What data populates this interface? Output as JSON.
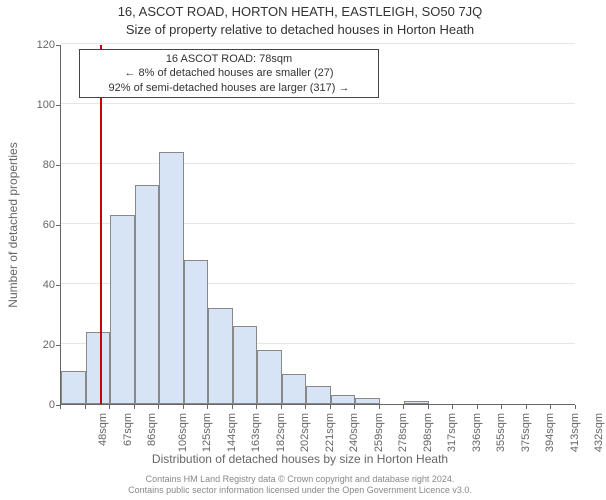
{
  "titles": {
    "main": "16, ASCOT ROAD, HORTON HEATH, EASTLEIGH, SO50 7JQ",
    "sub": "Size of property relative to detached houses in Horton Heath",
    "y_axis": "Number of detached properties",
    "x_axis": "Distribution of detached houses by size in Horton Heath"
  },
  "chart": {
    "type": "histogram",
    "ylim": [
      0,
      120
    ],
    "ytick_step": 20,
    "background_color": "#ffffff",
    "grid_color": "#e6e6e6",
    "axis_color": "#666666",
    "bar_fill": "#d6e4f5",
    "bar_border": "#888888",
    "bins": [
      {
        "label": "48sqm",
        "value": 11
      },
      {
        "label": "67sqm",
        "value": 24
      },
      {
        "label": "86sqm",
        "value": 63
      },
      {
        "label": "106sqm",
        "value": 73
      },
      {
        "label": "125sqm",
        "value": 84
      },
      {
        "label": "144sqm",
        "value": 48
      },
      {
        "label": "163sqm",
        "value": 32
      },
      {
        "label": "182sqm",
        "value": 26
      },
      {
        "label": "202sqm",
        "value": 18
      },
      {
        "label": "221sqm",
        "value": 10
      },
      {
        "label": "240sqm",
        "value": 6
      },
      {
        "label": "259sqm",
        "value": 3
      },
      {
        "label": "278sqm",
        "value": 2
      },
      {
        "label": "298sqm",
        "value": 0
      },
      {
        "label": "317sqm",
        "value": 1
      },
      {
        "label": "336sqm",
        "value": 0
      },
      {
        "label": "355sqm",
        "value": 0
      },
      {
        "label": "375sqm",
        "value": 0
      },
      {
        "label": "394sqm",
        "value": 0
      },
      {
        "label": "413sqm",
        "value": 0
      },
      {
        "label": "432sqm",
        "value": 0
      }
    ],
    "marker": {
      "bin_index": 1.6,
      "color": "#cc0000"
    }
  },
  "callout": {
    "line1": "16 ASCOT ROAD: 78sqm",
    "line2": "← 8% of detached houses are smaller (27)",
    "line3": "92% of semi-detached houses are larger (317) →"
  },
  "footer": {
    "line1": "Contains HM Land Registry data © Crown copyright and database right 2024.",
    "line2": "Contains public sector information licensed under the Open Government Licence v3.0."
  }
}
